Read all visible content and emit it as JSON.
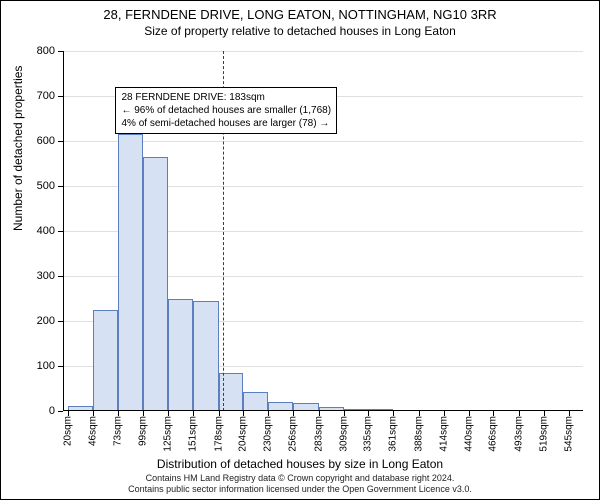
{
  "title": {
    "main": "28, FERNDENE DRIVE, LONG EATON, NOTTINGHAM, NG10 3RR",
    "sub": "Size of property relative to detached houses in Long Eaton"
  },
  "chart": {
    "type": "histogram",
    "ylabel": "Number of detached properties",
    "xlabel": "Distribution of detached houses by size in Long Eaton",
    "ylim": [
      0,
      800
    ],
    "ytick_step": 100,
    "background_color": "#ffffff",
    "grid_color": "#e0e0e0",
    "bar_fill": "#d6e2f3",
    "bar_stroke": "#5b7fbf",
    "bar_width": 1.0,
    "xtick_labels": [
      "20sqm",
      "46sqm",
      "73sqm",
      "99sqm",
      "125sqm",
      "151sqm",
      "178sqm",
      "204sqm",
      "230sqm",
      "256sqm",
      "283sqm",
      "309sqm",
      "335sqm",
      "361sqm",
      "388sqm",
      "414sqm",
      "440sqm",
      "466sqm",
      "493sqm",
      "519sqm",
      "545sqm"
    ],
    "xtick_positions_sqm": [
      20,
      46,
      73,
      99,
      125,
      151,
      178,
      204,
      230,
      256,
      283,
      309,
      335,
      361,
      388,
      414,
      440,
      466,
      493,
      519,
      545
    ],
    "x_range_sqm": [
      15,
      560
    ],
    "bars": [
      {
        "from_sqm": 20,
        "to_sqm": 46,
        "value": 12
      },
      {
        "from_sqm": 46,
        "to_sqm": 73,
        "value": 225
      },
      {
        "from_sqm": 73,
        "to_sqm": 99,
        "value": 615
      },
      {
        "from_sqm": 99,
        "to_sqm": 125,
        "value": 565
      },
      {
        "from_sqm": 125,
        "to_sqm": 151,
        "value": 250
      },
      {
        "from_sqm": 151,
        "to_sqm": 178,
        "value": 245
      },
      {
        "from_sqm": 178,
        "to_sqm": 204,
        "value": 85
      },
      {
        "from_sqm": 204,
        "to_sqm": 230,
        "value": 42
      },
      {
        "from_sqm": 230,
        "to_sqm": 256,
        "value": 20
      },
      {
        "from_sqm": 256,
        "to_sqm": 283,
        "value": 18
      },
      {
        "from_sqm": 283,
        "to_sqm": 309,
        "value": 8
      },
      {
        "from_sqm": 309,
        "to_sqm": 335,
        "value": 5
      },
      {
        "from_sqm": 335,
        "to_sqm": 361,
        "value": 2
      }
    ],
    "marker": {
      "sqm": 183,
      "color": "#cc0000",
      "dash": true
    },
    "annotation": {
      "line1": "28 FERNDENE DRIVE: 183sqm",
      "line2": "← 96% of detached houses are smaller (1,768)",
      "line3": "4% of semi-detached houses are larger (78) →",
      "border_color": "#000000",
      "background_color": "#ffffff",
      "pos_sqm": 70,
      "pos_yval": 720
    }
  },
  "footer": {
    "line1": "Contains HM Land Registry data © Crown copyright and database right 2024.",
    "line2": "Contains public sector information licensed under the Open Government Licence v3.0."
  }
}
